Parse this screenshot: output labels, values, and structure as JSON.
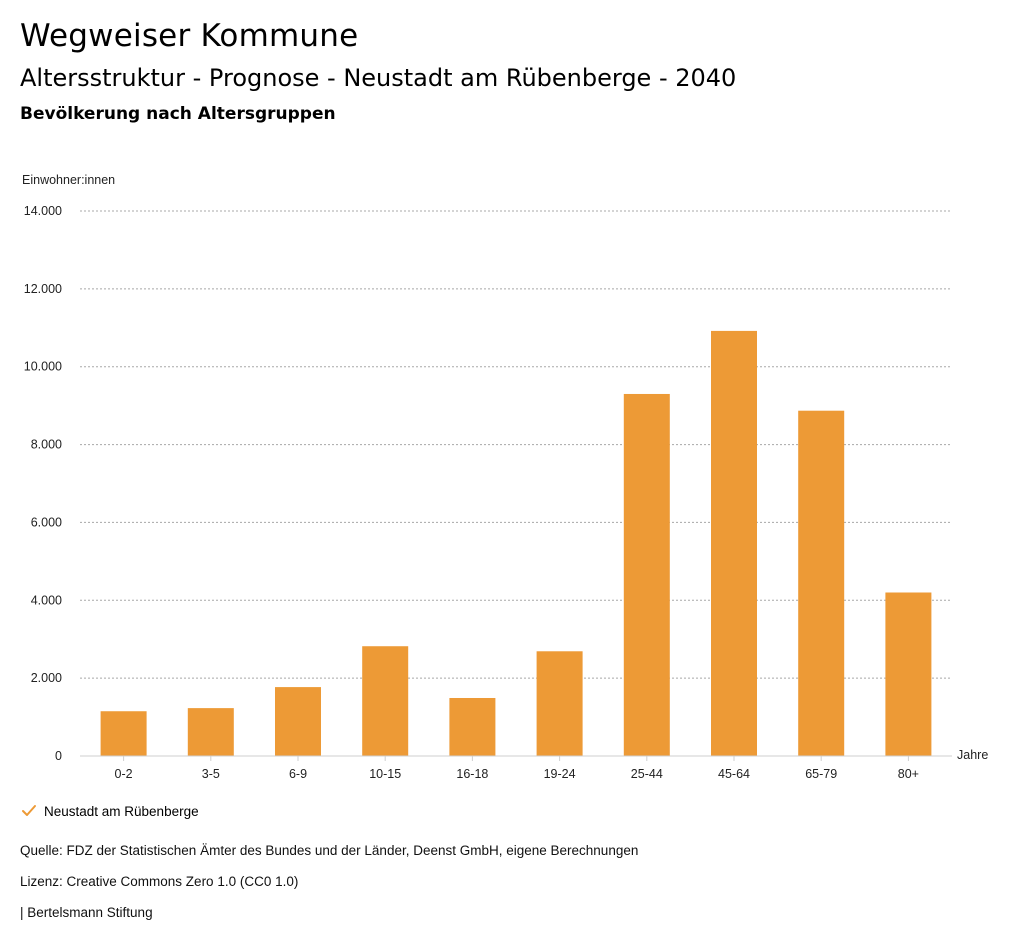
{
  "header": {
    "title": "Wegweiser Kommune",
    "subtitle": "Altersstruktur - Prognose - Neustadt am Rübenberge - 2040",
    "section": "Bevölkerung nach Altersgruppen"
  },
  "chart_data": {
    "type": "bar",
    "ylabel": "Einwohner:innen",
    "xlabel": "Jahre",
    "ylim": [
      0,
      14000
    ],
    "yticks": [
      0,
      2000,
      4000,
      6000,
      8000,
      10000,
      12000,
      14000
    ],
    "ytick_labels": [
      "0",
      "2.000",
      "4.000",
      "6.000",
      "8.000",
      "10.000",
      "12.000",
      "14.000"
    ],
    "grid": true,
    "categories": [
      "0-2",
      "3-5",
      "6-9",
      "10-15",
      "16-18",
      "19-24",
      "25-44",
      "45-64",
      "65-79",
      "80+"
    ],
    "series": [
      {
        "name": "Neustadt am Rübenberge",
        "color": "#ed9a36",
        "values": [
          1150,
          1230,
          1770,
          2820,
          1490,
          2690,
          9300,
          10920,
          8870,
          4200
        ]
      }
    ],
    "legend_position": "bottom-left"
  },
  "legend": {
    "icon": "checkmark-icon",
    "label": "Neustadt am Rübenberge",
    "color": "#ed9a36"
  },
  "footer": {
    "source": "Quelle: FDZ der Statistischen Ämter des Bundes und der Länder, Deenst GmbH, eigene Berechnungen",
    "license": "Lizenz: Creative Commons Zero 1.0 (CC0 1.0)",
    "credit": "| Bertelsmann Stiftung"
  }
}
